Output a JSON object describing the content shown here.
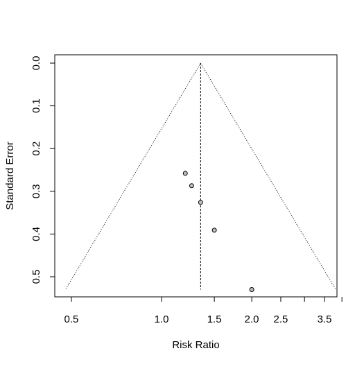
{
  "chart_data": {
    "type": "scatter",
    "subtype": "funnel-plot",
    "title": "",
    "xlabel": "Risk Ratio",
    "ylabel": "Standard Error",
    "x_scale": "log",
    "y_reversed": true,
    "xlim": [
      0.44,
      3.85
    ],
    "ylim": [
      0,
      0.55
    ],
    "x_ticks": [
      {
        "value": 0.5,
        "label": "0.5"
      },
      {
        "value": 1.0,
        "label": "1.0"
      },
      {
        "value": 1.5,
        "label": "1.5"
      },
      {
        "value": 2.0,
        "label": "2.0"
      },
      {
        "value": 2.5,
        "label": "2.5"
      },
      {
        "value": 3.0,
        "label": ""
      },
      {
        "value": 3.5,
        "label": "3.5"
      },
      {
        "value": 4.0,
        "label": ""
      }
    ],
    "y_ticks": [
      {
        "value": 0.0,
        "label": "0.0"
      },
      {
        "value": 0.1,
        "label": "0.1"
      },
      {
        "value": 0.2,
        "label": "0.2"
      },
      {
        "value": 0.3,
        "label": "0.3"
      },
      {
        "value": 0.4,
        "label": "0.4"
      },
      {
        "value": 0.5,
        "label": "0.5"
      }
    ],
    "pooled_estimate": 1.35,
    "funnel_se_max": 0.53,
    "points": [
      {
        "rr": 1.2,
        "se": 0.258
      },
      {
        "rr": 1.26,
        "se": 0.287
      },
      {
        "rr": 1.35,
        "se": 0.326
      },
      {
        "rr": 1.5,
        "se": 0.391
      },
      {
        "rr": 2.0,
        "se": 0.53
      }
    ],
    "grid": false,
    "legend": "none",
    "colors": {
      "point_fill": "#bebebe",
      "point_stroke": "#000000",
      "line": "#000000"
    }
  }
}
